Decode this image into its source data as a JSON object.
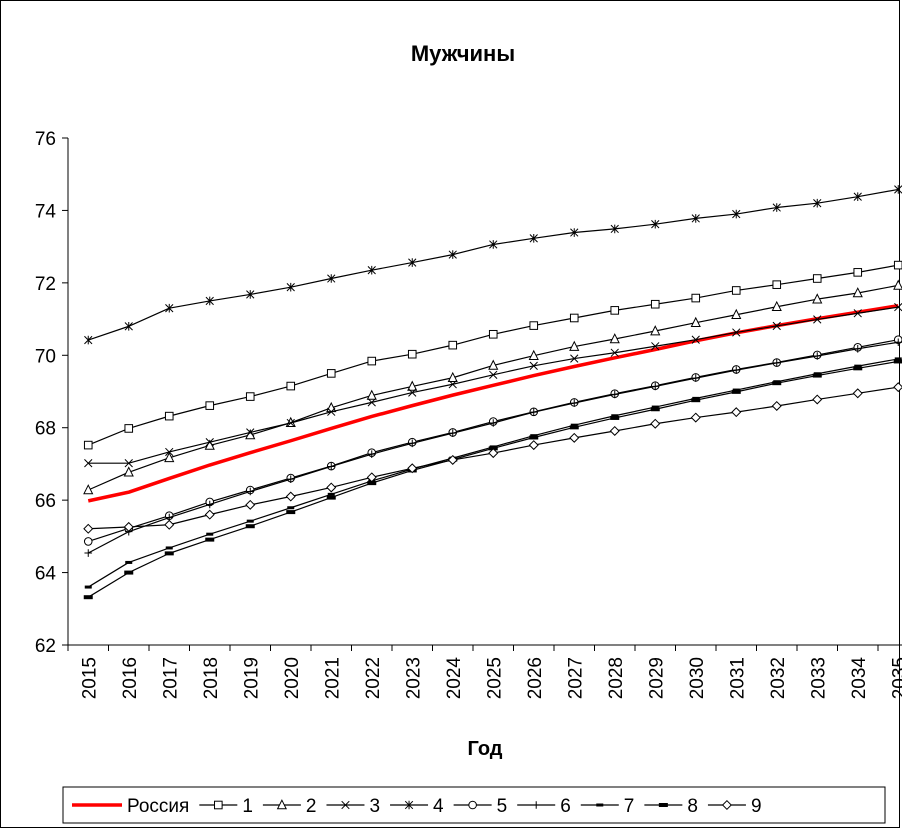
{
  "chart_data": {
    "type": "line",
    "title": "Мужчины",
    "xlabel": "Год",
    "ylabel": "",
    "ylim": [
      62,
      76
    ],
    "yticks": [
      62,
      64,
      66,
      68,
      70,
      72,
      74,
      76
    ],
    "grid": false,
    "legend": "bottom",
    "x": [
      "2015",
      "2016",
      "2017",
      "2018",
      "2019",
      "2020",
      "2021",
      "2022",
      "2023",
      "2024",
      "2025",
      "2026",
      "2027",
      "2028",
      "2029",
      "2030",
      "2031",
      "2032",
      "2033",
      "2034",
      "2035"
    ],
    "series": [
      {
        "name": "Россия",
        "marker": "none",
        "color": "#ff0000",
        "values": [
          65.98,
          66.22,
          66.6,
          66.97,
          67.31,
          67.64,
          67.98,
          68.31,
          68.61,
          68.9,
          69.17,
          69.44,
          69.69,
          69.93,
          70.16,
          70.4,
          70.62,
          70.82,
          71.01,
          71.19,
          71.37
        ]
      },
      {
        "name": "1",
        "marker": "square",
        "color": "#000000",
        "values": [
          67.52,
          67.98,
          68.32,
          68.61,
          68.86,
          69.15,
          69.5,
          69.84,
          70.03,
          70.28,
          70.58,
          70.82,
          71.03,
          71.24,
          71.41,
          71.58,
          71.79,
          71.95,
          72.12,
          72.29,
          72.49
        ]
      },
      {
        "name": "2",
        "marker": "triangle",
        "color": "#000000",
        "values": [
          66.28,
          66.77,
          67.17,
          67.51,
          67.8,
          68.14,
          68.55,
          68.89,
          69.14,
          69.38,
          69.72,
          69.99,
          70.24,
          70.45,
          70.67,
          70.9,
          71.12,
          71.34,
          71.55,
          71.72,
          71.93
        ]
      },
      {
        "name": "3",
        "marker": "x",
        "color": "#000000",
        "values": [
          67.02,
          67.02,
          67.33,
          67.6,
          67.87,
          68.13,
          68.44,
          68.7,
          68.97,
          69.2,
          69.46,
          69.71,
          69.91,
          70.07,
          70.25,
          70.43,
          70.63,
          70.81,
          70.99,
          71.16,
          71.33
        ]
      },
      {
        "name": "4",
        "marker": "star",
        "color": "#000000",
        "values": [
          70.42,
          70.8,
          71.3,
          71.5,
          71.68,
          71.88,
          72.12,
          72.35,
          72.56,
          72.78,
          73.06,
          73.23,
          73.39,
          73.49,
          73.62,
          73.78,
          73.9,
          74.08,
          74.2,
          74.38,
          74.58
        ]
      },
      {
        "name": "5",
        "marker": "circle",
        "color": "#000000",
        "values": [
          64.86,
          65.22,
          65.57,
          65.95,
          66.28,
          66.61,
          66.94,
          67.31,
          67.6,
          67.87,
          68.17,
          68.44,
          68.7,
          68.94,
          69.16,
          69.39,
          69.61,
          69.8,
          70.01,
          70.22,
          70.43
        ]
      },
      {
        "name": "6",
        "marker": "plus",
        "color": "#000000",
        "values": [
          64.54,
          65.13,
          65.52,
          65.88,
          66.24,
          66.58,
          66.93,
          67.27,
          67.57,
          67.85,
          68.13,
          68.43,
          68.68,
          68.92,
          69.14,
          69.37,
          69.59,
          69.79,
          69.98,
          70.18,
          70.36
        ]
      },
      {
        "name": "7",
        "marker": "dash",
        "color": "#000000",
        "values": [
          63.6,
          64.28,
          64.68,
          65.06,
          65.42,
          65.79,
          66.16,
          66.53,
          66.86,
          67.16,
          67.47,
          67.78,
          68.07,
          68.33,
          68.57,
          68.81,
          69.04,
          69.27,
          69.49,
          69.7,
          69.9
        ]
      },
      {
        "name": "8",
        "marker": "bar",
        "color": "#000000",
        "values": [
          63.32,
          64.0,
          64.53,
          64.91,
          65.28,
          65.67,
          66.07,
          66.47,
          66.82,
          67.12,
          67.43,
          67.73,
          68.01,
          68.27,
          68.51,
          68.76,
          68.99,
          69.23,
          69.44,
          69.64,
          69.83
        ]
      },
      {
        "name": "9",
        "marker": "diamond",
        "color": "#000000",
        "values": [
          65.21,
          65.26,
          65.32,
          65.6,
          65.87,
          66.1,
          66.35,
          66.63,
          66.88,
          67.11,
          67.3,
          67.52,
          67.72,
          67.91,
          68.11,
          68.28,
          68.43,
          68.6,
          68.78,
          68.95,
          69.12
        ]
      }
    ]
  }
}
